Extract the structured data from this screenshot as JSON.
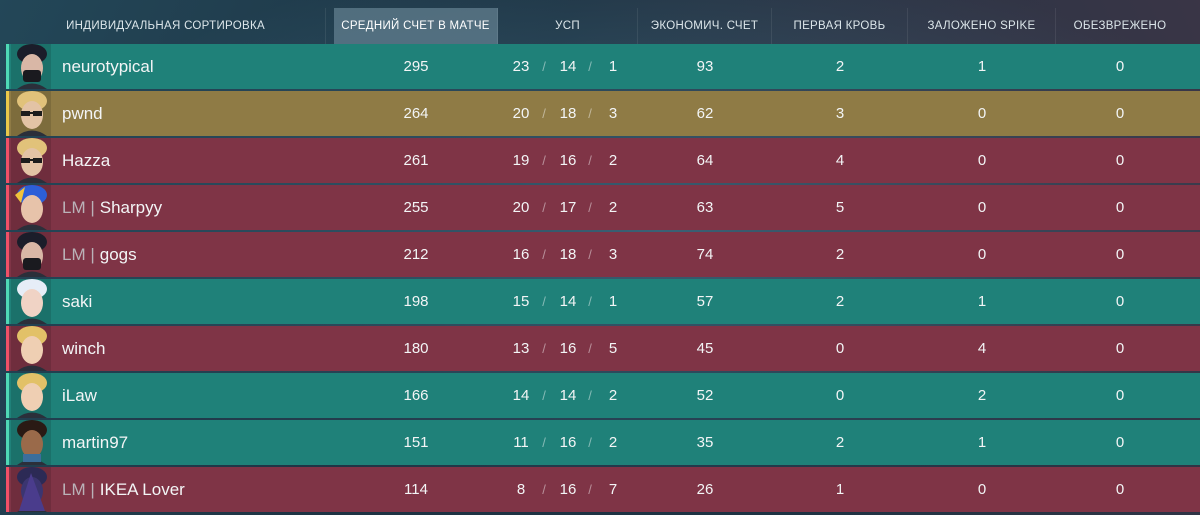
{
  "header": {
    "sort_label": "ИНДИВИДУАЛЬНАЯ СОРТИРОВКА",
    "acs_label": "СРЕДНИЙ СЧЕТ В МАТЧЕ",
    "kda_label": "УСП",
    "econ_label": "ЭКОНОМИЧ. СЧЕТ",
    "first_blood_label": "ПЕРВАЯ КРОВЬ",
    "plants_label": "ЗАЛОЖЕНО SPIKE",
    "defuses_label": "ОБЕЗВРЕЖЕНО"
  },
  "colors": {
    "team_green": "#1f8179",
    "team_red": "#7f3446",
    "self_gold": "#8f7b45"
  },
  "players": [
    {
      "tag": "",
      "name": "neurotypical",
      "acs": "295",
      "k": "23",
      "d": "14",
      "a": "1",
      "econ": "93",
      "first_blood": "2",
      "plants": "1",
      "defuses": "0",
      "team": "green",
      "agent_icon": "agent-masked-icon"
    },
    {
      "tag": "",
      "name": "pwnd",
      "acs": "264",
      "k": "20",
      "d": "18",
      "a": "3",
      "econ": "62",
      "first_blood": "3",
      "plants": "0",
      "defuses": "0",
      "team": "gold",
      "agent_icon": "agent-glasses-icon"
    },
    {
      "tag": "",
      "name": "Hazza",
      "acs": "261",
      "k": "19",
      "d": "16",
      "a": "2",
      "econ": "64",
      "first_blood": "4",
      "plants": "0",
      "defuses": "0",
      "team": "red",
      "agent_icon": "agent-glasses-icon"
    },
    {
      "tag": "LM |",
      "name": "Sharpyy",
      "acs": "255",
      "k": "20",
      "d": "17",
      "a": "2",
      "econ": "63",
      "first_blood": "5",
      "plants": "0",
      "defuses": "0",
      "team": "red",
      "agent_icon": "agent-blue-hair-icon"
    },
    {
      "tag": "LM |",
      "name": "gogs",
      "acs": "212",
      "k": "16",
      "d": "18",
      "a": "3",
      "econ": "74",
      "first_blood": "2",
      "plants": "0",
      "defuses": "0",
      "team": "red",
      "agent_icon": "agent-masked-icon"
    },
    {
      "tag": "",
      "name": "saki",
      "acs": "198",
      "k": "15",
      "d": "14",
      "a": "1",
      "econ": "57",
      "first_blood": "2",
      "plants": "1",
      "defuses": "0",
      "team": "green",
      "agent_icon": "agent-white-hair-icon"
    },
    {
      "tag": "",
      "name": "winch",
      "acs": "180",
      "k": "13",
      "d": "16",
      "a": "5",
      "econ": "45",
      "first_blood": "0",
      "plants": "4",
      "defuses": "0",
      "team": "red",
      "agent_icon": "agent-blonde-icon"
    },
    {
      "tag": "",
      "name": "iLaw",
      "acs": "166",
      "k": "14",
      "d": "14",
      "a": "2",
      "econ": "52",
      "first_blood": "0",
      "plants": "2",
      "defuses": "0",
      "team": "green",
      "agent_icon": "agent-blonde-icon"
    },
    {
      "tag": "",
      "name": "martin97",
      "acs": "151",
      "k": "11",
      "d": "16",
      "a": "2",
      "econ": "35",
      "first_blood": "2",
      "plants": "1",
      "defuses": "0",
      "team": "green",
      "agent_icon": "agent-dark-hair-icon"
    },
    {
      "tag": "LM |",
      "name": "IKEA Lover",
      "acs": "114",
      "k": "8",
      "d": "16",
      "a": "7",
      "econ": "26",
      "first_blood": "1",
      "plants": "0",
      "defuses": "0",
      "team": "red",
      "agent_icon": "agent-hooded-icon"
    }
  ]
}
